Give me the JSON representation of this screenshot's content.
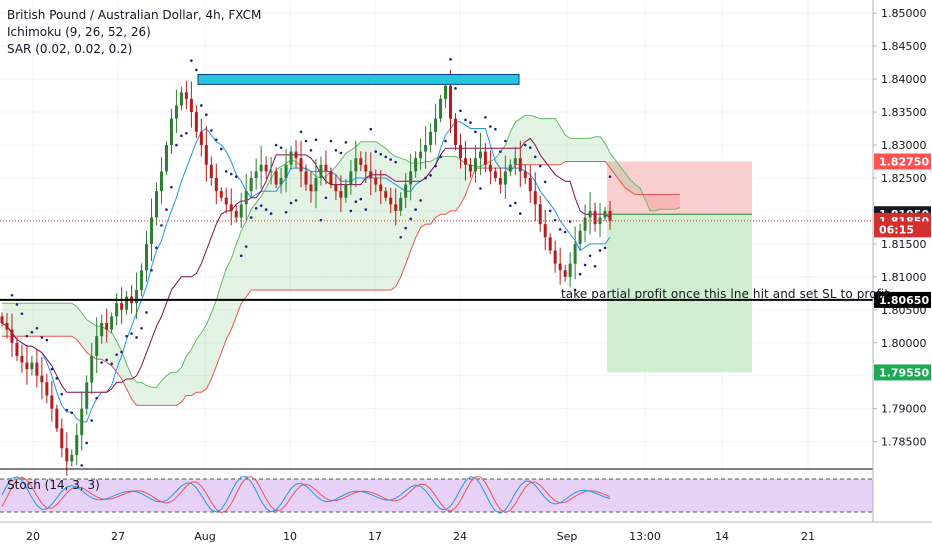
{
  "legend": {
    "title": "British Pound / Australian Dollar, 4h, FXCM",
    "ichimoku": "Ichimoku (9, 26, 52, 26)",
    "sar": "SAR (0.02, 0.02, 0.2)"
  },
  "stoch_label": "Stoch (14, 3, 3)",
  "annotation": "take partial profit once this lne hit and set SL to profit",
  "colors": {
    "up": "#26a69a",
    "down": "#ef5350",
    "candle_up": "#2e7d32",
    "candle_down": "#b71c1c",
    "tenkan": "#2196f3",
    "kijun": "#880e4f",
    "span_a": "#66bb6a",
    "span_b": "#ef5350",
    "sar": "#1a237e",
    "resistance": "#26c6da",
    "stop_zone": "#f8c6c6",
    "target_zone": "#c8ebc8",
    "stoch_bg": "#e1c6f5",
    "stoch_k": "#2196f3",
    "stoch_d": "#ef5350"
  },
  "chart_data": {
    "type": "candlestick",
    "symbol": "British Pound / Australian Dollar",
    "timeframe": "4h",
    "source": "FXCM",
    "ylim": [
      1.781,
      1.852
    ],
    "y_ticks": [
      "1.85000",
      "1.84500",
      "1.84000",
      "1.83500",
      "1.83000",
      "1.82500",
      "1.82000",
      "1.81500",
      "1.81000",
      "1.80500",
      "1.80000",
      "1.79500",
      "1.79000",
      "1.78500"
    ],
    "x_ticks": [
      "20",
      "27",
      "Aug",
      "10",
      "17",
      "24",
      "Sep",
      "13:00",
      "14",
      "21"
    ],
    "price_labels": [
      {
        "text": "1.82750",
        "value": 1.8275,
        "color": "#ff5252"
      },
      {
        "text": "1.81950",
        "value": 1.8195,
        "color": "#131722"
      },
      {
        "text": "1.81850",
        "value": 1.8185,
        "color": "#d32f2f"
      },
      {
        "text": "06:15",
        "value": 1.8172,
        "color": "#d32f2f"
      },
      {
        "text": "1.80650",
        "value": 1.8065,
        "color": "#000000"
      },
      {
        "text": "1.79550",
        "value": 1.7955,
        "color": "#1fa855"
      }
    ],
    "current_price": 1.8185,
    "horizontal_line": 1.8065,
    "resistance_zone": [
      1.8392,
      1.8407
    ],
    "trade": {
      "entry": 1.8195,
      "stop": 1.8275,
      "target": 1.7955
    },
    "closes": [
      1.803,
      1.802,
      1.8,
      1.798,
      1.797,
      1.796,
      1.797,
      1.795,
      1.794,
      1.792,
      1.79,
      1.787,
      1.784,
      1.782,
      1.783,
      1.786,
      1.79,
      1.794,
      1.798,
      1.801,
      1.803,
      1.802,
      1.804,
      1.806,
      1.805,
      1.807,
      1.806,
      1.808,
      1.811,
      1.815,
      1.819,
      1.823,
      1.826,
      1.83,
      1.834,
      1.836,
      1.838,
      1.837,
      1.835,
      1.832,
      1.83,
      1.827,
      1.825,
      1.823,
      1.822,
      1.821,
      1.82,
      1.819,
      1.821,
      1.823,
      1.825,
      1.826,
      1.827,
      1.826,
      1.826,
      1.824,
      1.825,
      1.827,
      1.829,
      1.828,
      1.826,
      1.824,
      1.823,
      1.825,
      1.827,
      1.826,
      1.824,
      1.823,
      1.822,
      1.824,
      1.826,
      1.828,
      1.827,
      1.826,
      1.825,
      1.824,
      1.823,
      1.822,
      1.821,
      1.82,
      1.822,
      1.824,
      1.826,
      1.828,
      1.829,
      1.83,
      1.832,
      1.834,
      1.837,
      1.839,
      1.834,
      1.83,
      1.828,
      1.827,
      1.826,
      1.828,
      1.829,
      1.827,
      1.826,
      1.825,
      1.824,
      1.826,
      1.827,
      1.828,
      1.826,
      1.825,
      1.823,
      1.821,
      1.818,
      1.816,
      1.814,
      1.812,
      1.811,
      1.81,
      1.812,
      1.815,
      1.817,
      1.819,
      1.82,
      1.818,
      1.819,
      1.82,
      1.8185
    ]
  }
}
